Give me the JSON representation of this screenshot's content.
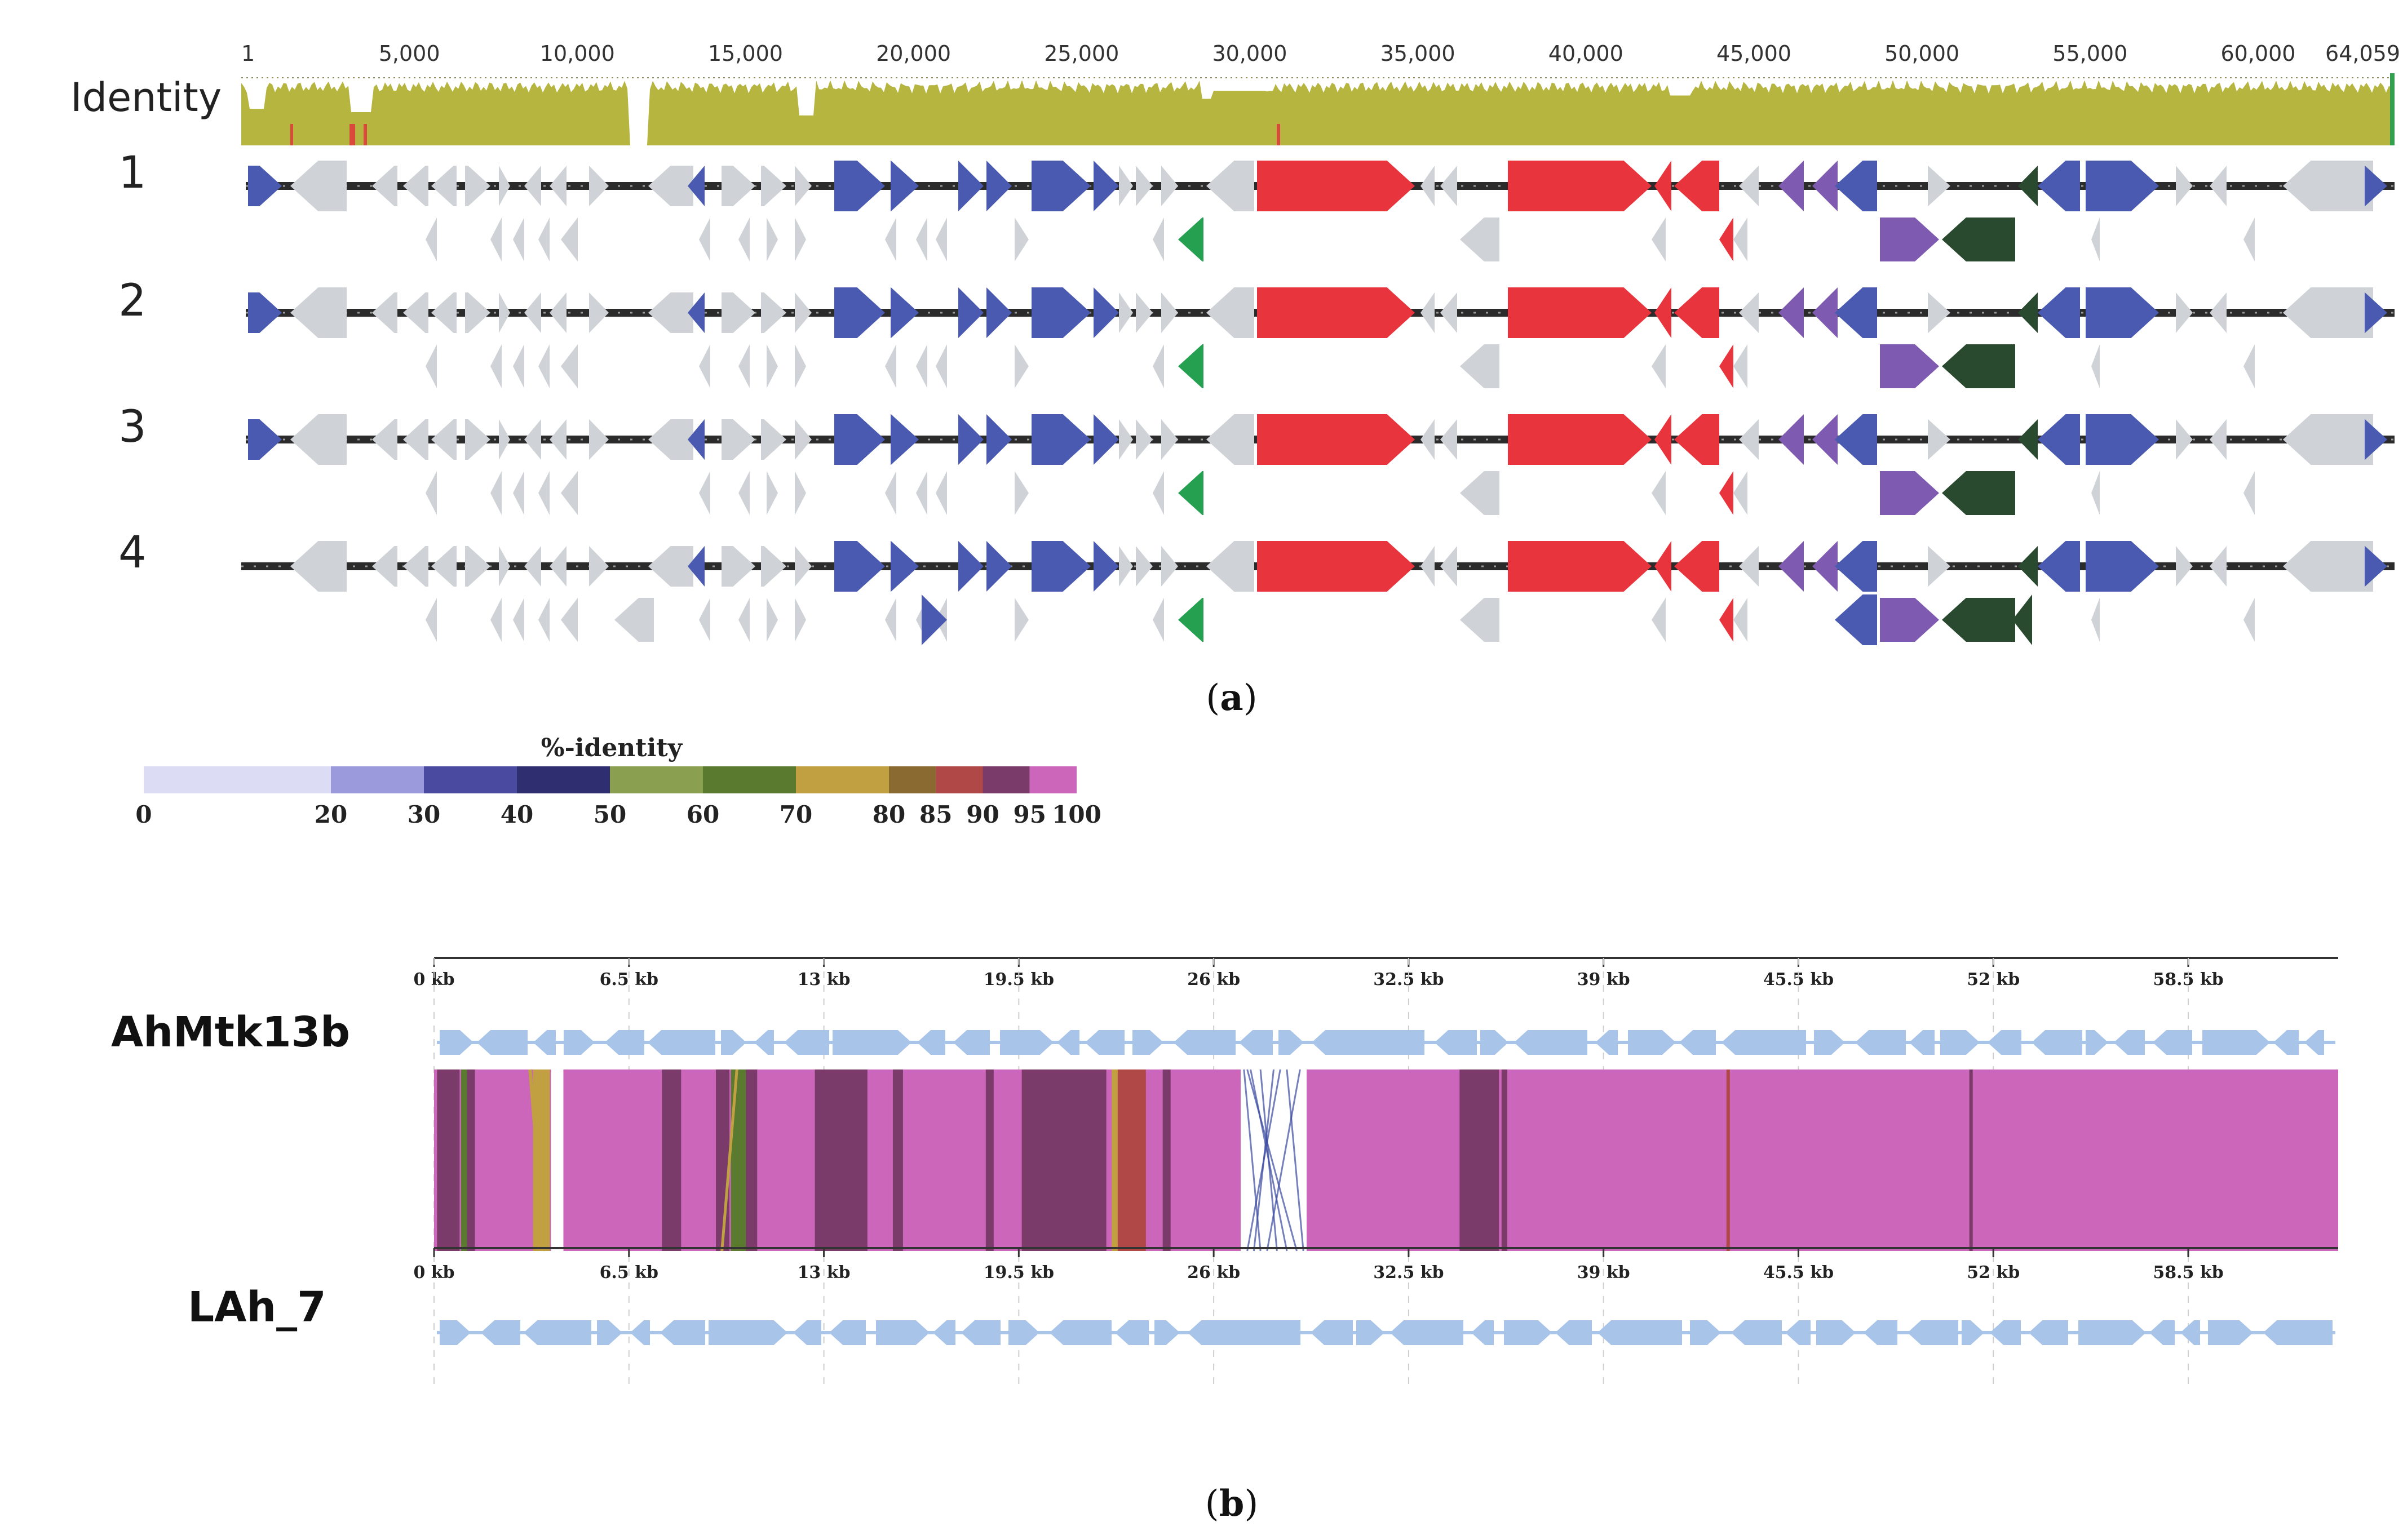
{
  "panel_a": {
    "caption": "(a)",
    "caption_letter": "a",
    "identity_label": "Identity",
    "ruler_ticks": [
      "1",
      "5,000",
      "10,000",
      "15,000",
      "20,000",
      "25,000",
      "30,000",
      "35,000",
      "40,000",
      "45,000",
      "50,000",
      "55,000",
      "60,000",
      "64,059"
    ],
    "genome_length": 64059,
    "track_labels": [
      "1",
      "2",
      "3",
      "4"
    ],
    "colors": {
      "identity": "#b5b53f",
      "identity_low": "#d94a3a",
      "backbone": "#2b2b2b",
      "grey_gene": "#cfd2d6",
      "blue_gene": "#4a5ab0",
      "red_gene": "#e8343c",
      "purple_gene": "#7e5ab0",
      "darkgreen_gene": "#2a4a30",
      "green_gene": "#25a050"
    }
  },
  "panel_b": {
    "caption": "(b)",
    "caption_letter": "b",
    "legend_title": "%-identity",
    "legend_ticks": [
      "0",
      "20",
      "30",
      "40",
      "50",
      "60",
      "70",
      "80",
      "85",
      "90",
      "95",
      "100"
    ],
    "legend_colors": [
      "#dcdcf4",
      "#9a9adc",
      "#4a4aa0",
      "#2e2e70",
      "#8aa050",
      "#5a7a30",
      "#c0a040",
      "#8a6a30",
      "#b04848",
      "#7a3a6a",
      "#cc66bb"
    ],
    "axis_ticks": [
      "0 kb",
      "6.5 kb",
      "13 kb",
      "19.5 kb",
      "26 kb",
      "32.5 kb",
      "39 kb",
      "45.5 kb",
      "52 kb",
      "58.5 kb"
    ],
    "genome_top": "AhMtk13b",
    "genome_bottom": "LAh_7",
    "colors": {
      "gene": "#a8c4e8",
      "match": "#cc66bb",
      "dark_band": "#7a3a6a",
      "red_band": "#b04848",
      "green_band": "#5a7a30",
      "gold_band": "#c0a040",
      "inversion_line": "#3a4aa0"
    }
  }
}
